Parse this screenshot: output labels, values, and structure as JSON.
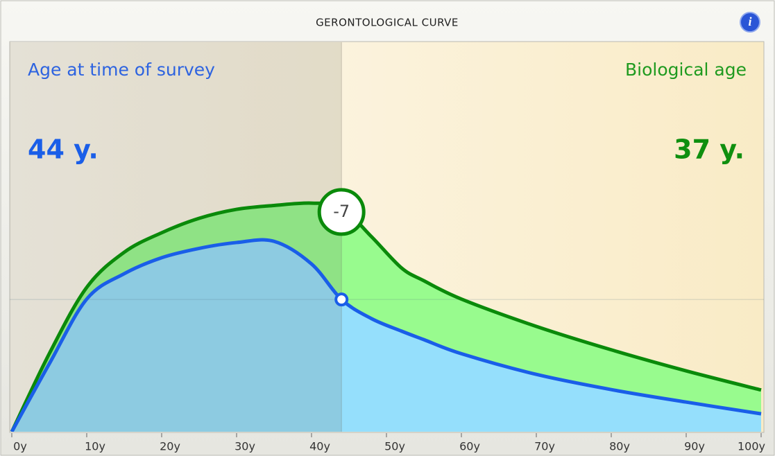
{
  "chart_data": {
    "type": "area",
    "title": "GERONTOLOGICAL CURVE",
    "left_label": "Age at time of survey",
    "right_label": "Biological age",
    "survey_age": {
      "value": 44,
      "label": "44 y."
    },
    "biological_age": {
      "value": 37,
      "label": "37 y."
    },
    "difference": -7,
    "x": [
      0,
      5,
      10,
      15,
      20,
      25,
      30,
      35,
      40,
      44,
      48,
      52,
      55,
      60,
      70,
      80,
      90,
      100
    ],
    "series": [
      {
        "color": "#0a8a0a",
        "fill": "#98fb8e",
        "values": [
          0,
          20,
          37,
          46,
          51,
          54.7,
          57,
          58,
          58.6,
          57.4,
          50,
          42,
          38.7,
          34,
          27,
          21,
          15.6,
          10.7
        ]
      },
      {
        "color": "#1a5ee8",
        "fill": "#95dffc",
        "values": [
          0,
          17.4,
          34,
          40.5,
          44.6,
          47,
          48.5,
          48.8,
          43,
          33.9,
          29,
          25.8,
          23.6,
          20,
          14.7,
          10.8,
          7.6,
          4.6
        ]
      }
    ],
    "xlim": [
      0,
      100
    ],
    "ylim": [
      0,
      100
    ],
    "xticks": [
      {
        "value": 0,
        "label": "0y"
      },
      {
        "value": 10,
        "label": "10y"
      },
      {
        "value": 20,
        "label": "20y"
      },
      {
        "value": 30,
        "label": "30y"
      },
      {
        "value": 40,
        "label": "40y"
      },
      {
        "value": 50,
        "label": "50y"
      },
      {
        "value": 60,
        "label": "60y"
      },
      {
        "value": 70,
        "label": "70y"
      },
      {
        "value": 80,
        "label": "80y"
      },
      {
        "value": 90,
        "label": "90y"
      },
      {
        "value": 100,
        "label": "100y"
      }
    ]
  }
}
